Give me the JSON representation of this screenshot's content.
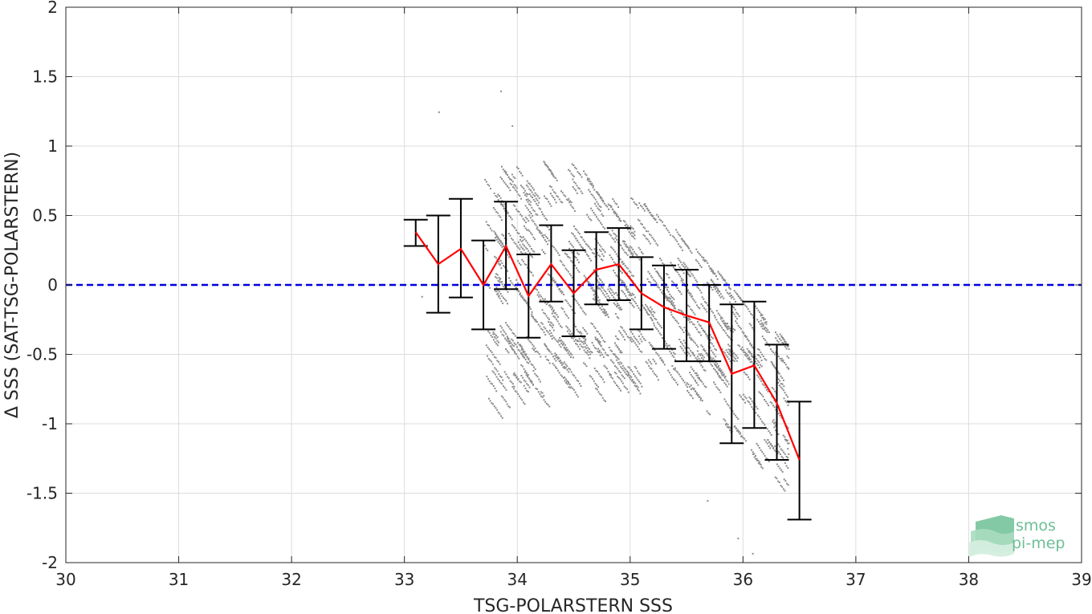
{
  "chart_data": {
    "type": "scatter",
    "xlabel": "TSG-POLARSTERN SSS",
    "ylabel": "Δ SSS (SAT-TSG-POLARSTERN)",
    "xlim": [
      30,
      39
    ],
    "ylim": [
      -2,
      2
    ],
    "x_ticks": [
      30,
      31,
      32,
      33,
      34,
      35,
      36,
      37,
      38,
      39
    ],
    "y_ticks": [
      2,
      1.5,
      1,
      0.5,
      0,
      -0.5,
      -1,
      -1.5,
      -2
    ],
    "y_tick_labels": [
      "2",
      "1.5",
      "1",
      "0.5",
      "0",
      "-0.5",
      "-1",
      "-1.5",
      "-2"
    ],
    "grid": true,
    "reference_line": {
      "y": 0,
      "color": "#0000dd",
      "style": "dashed"
    },
    "scatter_color": "#8c8c8c",
    "scatter_cloud": {
      "x_range": [
        33.7,
        36.4
      ],
      "core_bands": [
        {
          "x": 33.7,
          "y_low": -0.9,
          "y_high": 0.9
        },
        {
          "x": 34.5,
          "y_low": -0.8,
          "y_high": 0.9
        },
        {
          "x": 35.3,
          "y_low": -0.6,
          "y_high": 0.5
        },
        {
          "x": 36.3,
          "y_low": -1.4,
          "y_high": -0.3
        }
      ],
      "outliers": [
        {
          "x": 33.3,
          "y": 1.25
        },
        {
          "x": 33.85,
          "y": 1.4
        },
        {
          "x": 33.95,
          "y": 1.15
        },
        {
          "x": 35.95,
          "y": -1.82
        },
        {
          "x": 36.08,
          "y": -1.93
        },
        {
          "x": 35.68,
          "y": -1.55
        },
        {
          "x": 33.15,
          "y": -0.08
        }
      ]
    },
    "bins": {
      "x": [
        33.1,
        33.3,
        33.5,
        33.7,
        33.9,
        34.1,
        34.3,
        34.5,
        34.7,
        34.9,
        35.1,
        35.3,
        35.5,
        35.7,
        35.9,
        36.1,
        36.3,
        36.5
      ],
      "mean": [
        0.38,
        0.15,
        0.26,
        0.0,
        0.28,
        -0.08,
        0.15,
        -0.06,
        0.11,
        0.15,
        -0.06,
        -0.16,
        -0.22,
        -0.27,
        -0.64,
        -0.58,
        -0.85,
        -1.26
      ],
      "err_low": [
        0.28,
        -0.2,
        -0.09,
        -0.32,
        -0.03,
        -0.38,
        -0.12,
        -0.37,
        -0.14,
        -0.11,
        -0.32,
        -0.46,
        -0.55,
        -0.55,
        -1.14,
        -1.03,
        -1.26,
        -1.69
      ],
      "err_high": [
        0.47,
        0.5,
        0.62,
        0.32,
        0.6,
        0.22,
        0.43,
        0.25,
        0.38,
        0.41,
        0.2,
        0.14,
        0.11,
        0.0,
        -0.14,
        -0.12,
        -0.43,
        -0.84
      ],
      "mean_color": "#ff0000",
      "errorbar_color": "#000000"
    }
  },
  "logo": {
    "line1": "smos",
    "line2": "pi-mep",
    "color": "#6dbf95"
  }
}
